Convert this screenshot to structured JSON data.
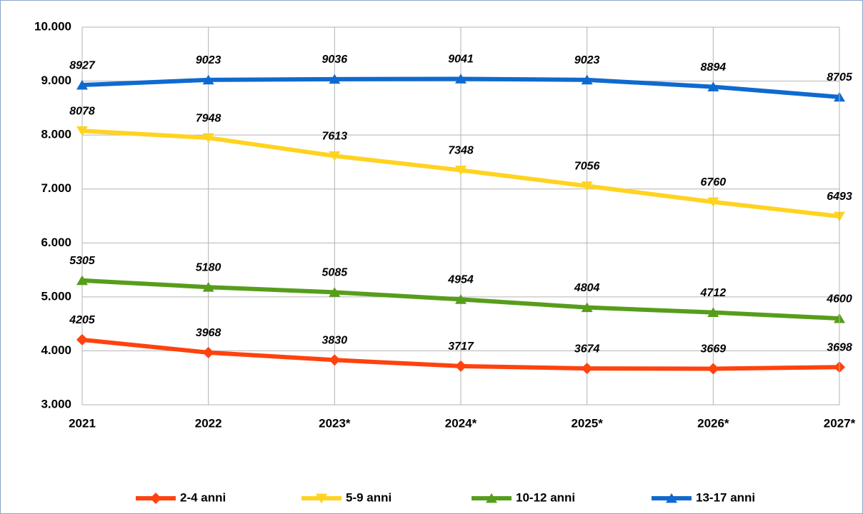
{
  "chart_data": {
    "type": "line",
    "categories": [
      "2021",
      "2022",
      "2023*",
      "2024*",
      "2025*",
      "2026*",
      "2027*"
    ],
    "series": [
      {
        "name": "2-4 anni",
        "color": "#ff420e",
        "marker": "diamond",
        "values": [
          4205,
          3968,
          3830,
          3717,
          3674,
          3669,
          3698
        ]
      },
      {
        "name": "5-9 anni",
        "color": "#ffd320",
        "marker": "triangle-down",
        "values": [
          8078,
          7948,
          7613,
          7348,
          7056,
          6760,
          6493
        ]
      },
      {
        "name": "10-12 anni",
        "color": "#579d1c",
        "marker": "triangle-up",
        "values": [
          5305,
          5180,
          5085,
          4954,
          4804,
          4712,
          4600
        ]
      },
      {
        "name": "13-17 anni",
        "color": "#0f6ad0",
        "marker": "triangle-up",
        "values": [
          8927,
          9023,
          9036,
          9041,
          9023,
          8894,
          8705
        ]
      }
    ],
    "ylim": [
      3000,
      10000
    ],
    "yticks": [
      {
        "value": 3000,
        "label": "3.000"
      },
      {
        "value": 4000,
        "label": "4.000"
      },
      {
        "value": 5000,
        "label": "5.000"
      },
      {
        "value": 6000,
        "label": "6.000"
      },
      {
        "value": 7000,
        "label": "7.000"
      },
      {
        "value": 8000,
        "label": "8.000"
      },
      {
        "value": 9000,
        "label": "9.000"
      },
      {
        "value": 10000,
        "label": "10.000"
      }
    ],
    "grid": true,
    "legend": "bottom"
  }
}
